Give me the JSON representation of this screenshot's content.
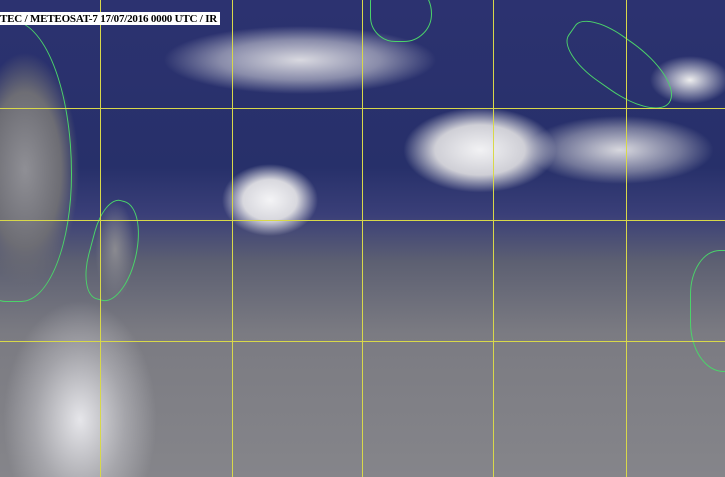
{
  "caption": "TEC / METEOSAT-7 17/07/2016 0000 UTC /  IR",
  "colors": {
    "grid": "#d8d84a",
    "coastline": "#4bd36a",
    "ocean": "#2c3270",
    "cloud": "#f2f2f4"
  }
}
